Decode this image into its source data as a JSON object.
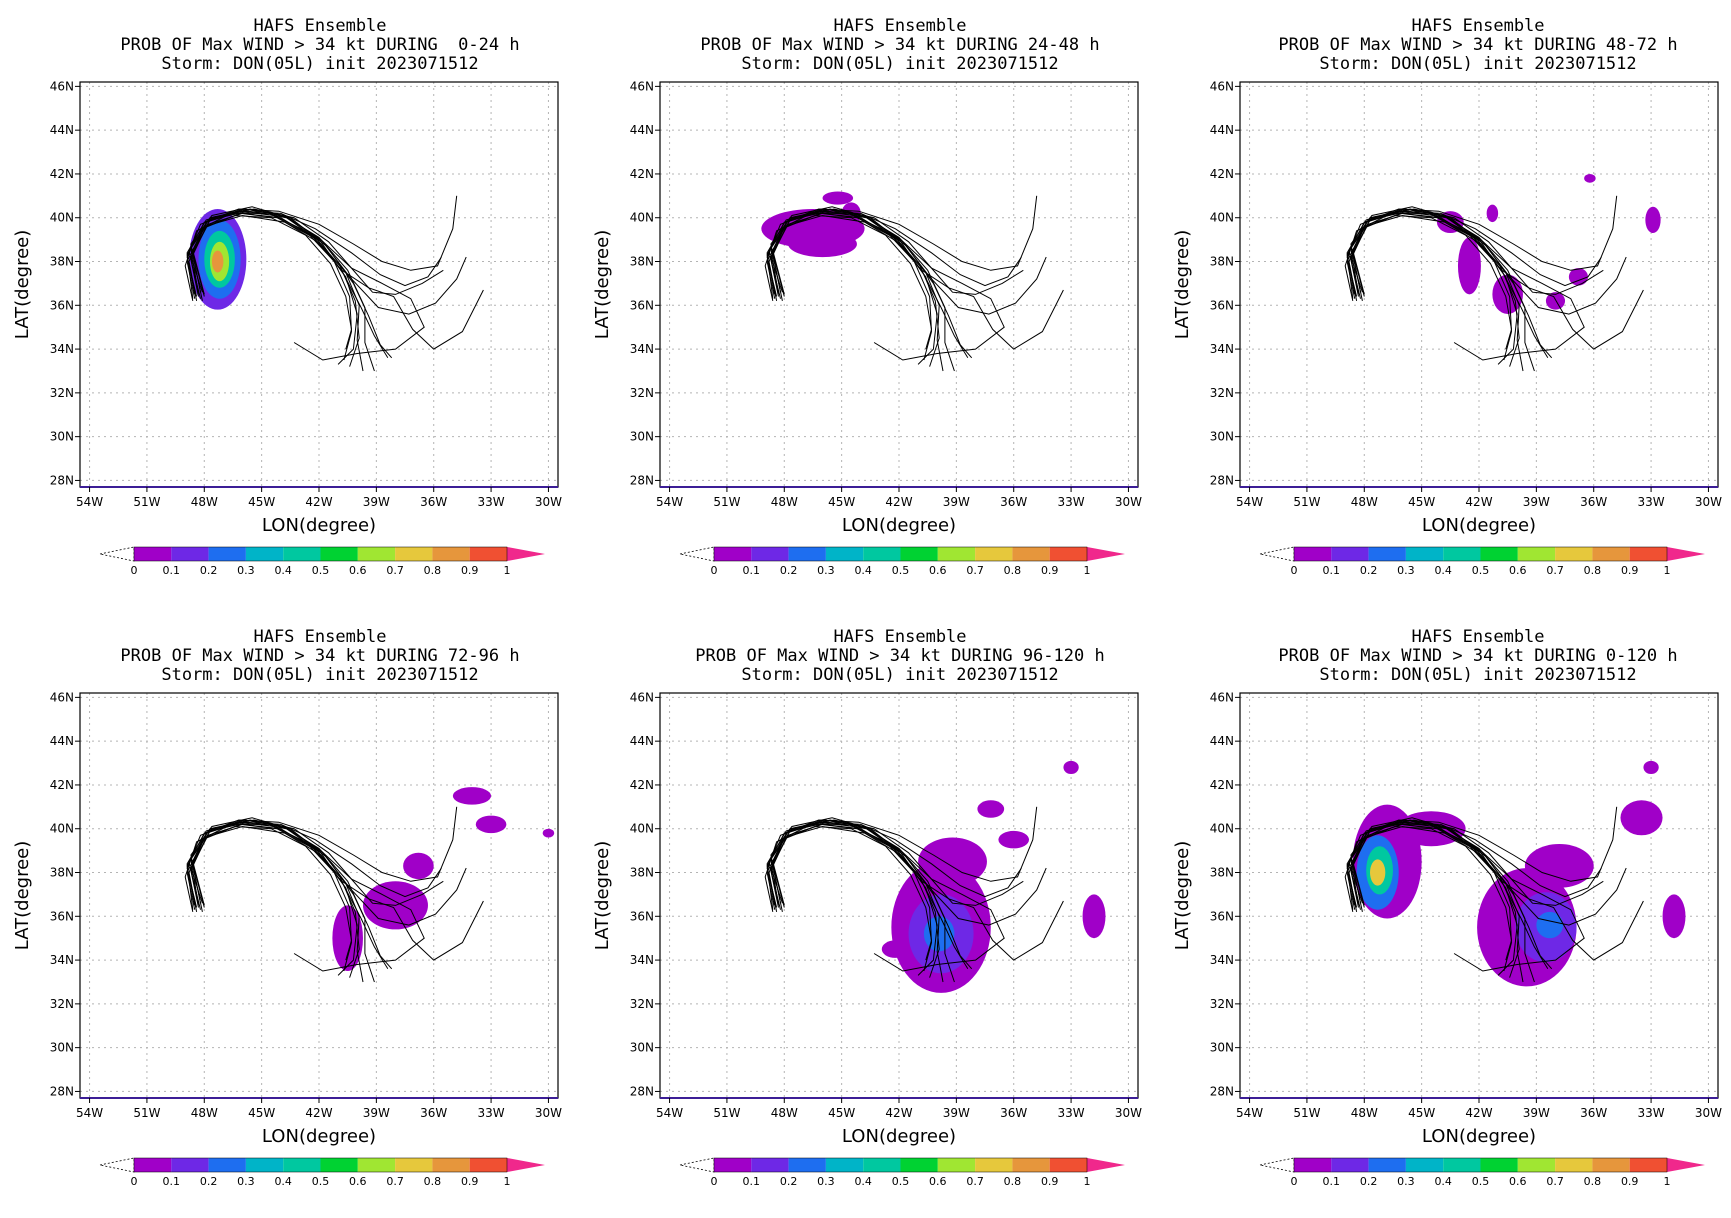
{
  "figure": {
    "xlabel": "LON(degree)",
    "ylabel": "LAT(degree)",
    "lat_ticks": [
      "46N",
      "44N",
      "42N",
      "40N",
      "38N",
      "36N",
      "34N",
      "32N",
      "30N",
      "28N"
    ],
    "lon_ticks": [
      "54W",
      "51W",
      "48W",
      "45W",
      "42W",
      "39W",
      "36W",
      "33W",
      "30W"
    ],
    "colorbar_labels": [
      "0",
      "0.1",
      "0.2",
      "0.3",
      "0.4",
      "0.5",
      "0.6",
      "0.7",
      "0.8",
      "0.9",
      "1"
    ],
    "colorbar_colors": [
      "#a000c8",
      "#6e28e6",
      "#1e6ef0",
      "#00b4c8",
      "#00c8a0",
      "#00d232",
      "#a0e632",
      "#e6c83c",
      "#e6963c",
      "#f05032"
    ],
    "colorbar_over_color": "#f0288c",
    "track_color": "#000000",
    "grid": true
  },
  "panels": [
    {
      "id": "p0-24",
      "title": [
        "HAFS Ensemble",
        "PROB OF Max WIND > 34 kt DURING  0-24 h",
        "Storm: DON(05L) init 2023071512"
      ],
      "prob_blobs": [
        {
          "lon": -47.3,
          "lat": 38.1,
          "rlon": 1.5,
          "rlat": 2.3,
          "p": 0.12
        },
        {
          "lon": -47.2,
          "lat": 38.1,
          "rlon": 1.1,
          "rlat": 1.8,
          "p": 0.25
        },
        {
          "lon": -47.2,
          "lat": 38.1,
          "rlon": 0.8,
          "rlat": 1.3,
          "p": 0.45
        },
        {
          "lon": -47.2,
          "lat": 38.0,
          "rlon": 0.5,
          "rlat": 0.9,
          "p": 0.65
        },
        {
          "lon": -47.3,
          "lat": 38.0,
          "rlon": 0.3,
          "rlat": 0.5,
          "p": 0.85
        }
      ]
    },
    {
      "id": "p24-48",
      "title": [
        "HAFS Ensemble",
        "PROB OF Max WIND > 34 kt DURING 24-48 h",
        "Storm: DON(05L) init 2023071512"
      ],
      "prob_blobs": [
        {
          "lon": -46.5,
          "lat": 39.5,
          "rlon": 2.7,
          "rlat": 0.9,
          "p": 0.05
        },
        {
          "lon": -46.0,
          "lat": 38.8,
          "rlon": 1.8,
          "rlat": 0.6,
          "p": 0.05
        },
        {
          "lon": -45.2,
          "lat": 40.9,
          "rlon": 0.8,
          "rlat": 0.3,
          "p": 0.05
        },
        {
          "lon": -44.5,
          "lat": 40.2,
          "rlon": 0.5,
          "rlat": 0.5,
          "p": 0.05
        }
      ]
    },
    {
      "id": "p48-72",
      "title": [
        "HAFS Ensemble",
        "PROB OF Max WIND > 34 kt DURING 48-72 h",
        "Storm: DON(05L) init 2023071512"
      ],
      "prob_blobs": [
        {
          "lon": -42.5,
          "lat": 37.8,
          "rlon": 0.6,
          "rlat": 1.3,
          "p": 0.05
        },
        {
          "lon": -43.5,
          "lat": 39.8,
          "rlon": 0.7,
          "rlat": 0.5,
          "p": 0.05
        },
        {
          "lon": -40.5,
          "lat": 36.5,
          "rlon": 0.8,
          "rlat": 0.9,
          "p": 0.05
        },
        {
          "lon": -38.0,
          "lat": 36.2,
          "rlon": 0.5,
          "rlat": 0.4,
          "p": 0.05
        },
        {
          "lon": -36.8,
          "lat": 37.3,
          "rlon": 0.5,
          "rlat": 0.4,
          "p": 0.05
        },
        {
          "lon": -32.9,
          "lat": 39.9,
          "rlon": 0.4,
          "rlat": 0.6,
          "p": 0.05
        },
        {
          "lon": -41.3,
          "lat": 40.2,
          "rlon": 0.3,
          "rlat": 0.4,
          "p": 0.05
        },
        {
          "lon": -36.2,
          "lat": 41.8,
          "rlon": 0.3,
          "rlat": 0.2,
          "p": 0.05
        }
      ]
    },
    {
      "id": "p72-96",
      "title": [
        "HAFS Ensemble",
        "PROB OF Max WIND > 34 kt DURING 72-96 h",
        "Storm: DON(05L) init 2023071512"
      ],
      "prob_blobs": [
        {
          "lon": -40.5,
          "lat": 35.0,
          "rlon": 0.8,
          "rlat": 1.5,
          "p": 0.05
        },
        {
          "lon": -38.0,
          "lat": 36.5,
          "rlon": 1.7,
          "rlat": 1.1,
          "p": 0.05
        },
        {
          "lon": -36.8,
          "lat": 38.3,
          "rlon": 0.8,
          "rlat": 0.6,
          "p": 0.05
        },
        {
          "lon": -34.0,
          "lat": 41.5,
          "rlon": 1.0,
          "rlat": 0.4,
          "p": 0.05
        },
        {
          "lon": -33.0,
          "lat": 40.2,
          "rlon": 0.8,
          "rlat": 0.4,
          "p": 0.05
        },
        {
          "lon": -30.0,
          "lat": 39.8,
          "rlon": 0.3,
          "rlat": 0.2,
          "p": 0.05
        }
      ]
    },
    {
      "id": "p96-120",
      "title": [
        "HAFS Ensemble",
        "PROB OF Max WIND > 34 kt DURING 96-120 h",
        "Storm: DON(05L) init 2023071512"
      ],
      "prob_blobs": [
        {
          "lon": -39.8,
          "lat": 35.5,
          "rlon": 2.6,
          "rlat": 3.0,
          "p": 0.05
        },
        {
          "lon": -39.8,
          "lat": 35.2,
          "rlon": 1.7,
          "rlat": 1.8,
          "p": 0.15
        },
        {
          "lon": -39.9,
          "lat": 35.2,
          "rlon": 0.8,
          "rlat": 0.8,
          "p": 0.25
        },
        {
          "lon": -39.2,
          "lat": 38.5,
          "rlon": 1.8,
          "rlat": 1.1,
          "p": 0.05
        },
        {
          "lon": -36.0,
          "lat": 39.5,
          "rlon": 0.8,
          "rlat": 0.4,
          "p": 0.05
        },
        {
          "lon": -37.2,
          "lat": 40.9,
          "rlon": 0.7,
          "rlat": 0.4,
          "p": 0.05
        },
        {
          "lon": -31.8,
          "lat": 36.0,
          "rlon": 0.6,
          "rlat": 1.0,
          "p": 0.05
        },
        {
          "lon": -42.2,
          "lat": 34.5,
          "rlon": 0.7,
          "rlat": 0.4,
          "p": 0.05
        },
        {
          "lon": -33.0,
          "lat": 42.8,
          "rlon": 0.4,
          "rlat": 0.3,
          "p": 0.05
        }
      ]
    },
    {
      "id": "p0-120",
      "title": [
        "HAFS Ensemble",
        "PROB OF Max WIND > 34 kt DURING 0-120 h",
        "Storm: DON(05L) init 2023071512"
      ],
      "prob_blobs": [
        {
          "lon": -46.8,
          "lat": 38.5,
          "rlon": 1.8,
          "rlat": 2.6,
          "p": 0.05
        },
        {
          "lon": -47.3,
          "lat": 38.0,
          "rlon": 1.1,
          "rlat": 1.7,
          "p": 0.25
        },
        {
          "lon": -47.2,
          "lat": 38.1,
          "rlon": 0.7,
          "rlat": 1.1,
          "p": 0.45
        },
        {
          "lon": -47.3,
          "lat": 38.0,
          "rlon": 0.4,
          "rlat": 0.6,
          "p": 0.75
        },
        {
          "lon": -44.5,
          "lat": 40.0,
          "rlon": 1.8,
          "rlat": 0.8,
          "p": 0.05
        },
        {
          "lon": -39.5,
          "lat": 35.5,
          "rlon": 2.6,
          "rlat": 2.7,
          "p": 0.05
        },
        {
          "lon": -38.5,
          "lat": 35.5,
          "rlon": 1.6,
          "rlat": 1.6,
          "p": 0.15
        },
        {
          "lon": -38.3,
          "lat": 35.6,
          "rlon": 0.7,
          "rlat": 0.6,
          "p": 0.25
        },
        {
          "lon": -37.8,
          "lat": 38.3,
          "rlon": 1.8,
          "rlat": 1.0,
          "p": 0.05
        },
        {
          "lon": -31.8,
          "lat": 36.0,
          "rlon": 0.6,
          "rlat": 1.0,
          "p": 0.05
        },
        {
          "lon": -33.5,
          "lat": 40.5,
          "rlon": 1.1,
          "rlat": 0.8,
          "p": 0.05
        },
        {
          "lon": -33.0,
          "lat": 42.8,
          "rlon": 0.4,
          "rlat": 0.3,
          "p": 0.05
        }
      ]
    }
  ],
  "tracks": [
    [
      [
        -48.4,
        36.4
      ],
      [
        -48.9,
        38.2
      ],
      [
        -48.2,
        39.7
      ],
      [
        -46.3,
        40.3
      ],
      [
        -44.3,
        40.1
      ],
      [
        -42.4,
        39.2
      ],
      [
        -40.9,
        37.8
      ],
      [
        -40.1,
        36.2
      ],
      [
        -39.9,
        34.5
      ],
      [
        -40.4,
        33.2
      ]
    ],
    [
      [
        -48.0,
        36.5
      ],
      [
        -48.6,
        38.5
      ],
      [
        -47.8,
        39.9
      ],
      [
        -45.9,
        40.4
      ],
      [
        -43.9,
        40.1
      ],
      [
        -42.0,
        39.1
      ],
      [
        -40.5,
        37.6
      ],
      [
        -39.6,
        35.9
      ],
      [
        -39.6,
        34.3
      ],
      [
        -39.1,
        33.0
      ]
    ],
    [
      [
        -48.6,
        36.2
      ],
      [
        -49.0,
        37.8
      ],
      [
        -48.4,
        39.4
      ],
      [
        -46.6,
        40.2
      ],
      [
        -44.6,
        40.2
      ],
      [
        -42.7,
        39.4
      ],
      [
        -41.2,
        38.0
      ],
      [
        -40.4,
        36.4
      ],
      [
        -40.3,
        34.8
      ],
      [
        -40.7,
        33.5
      ]
    ],
    [
      [
        -48.2,
        36.6
      ],
      [
        -48.7,
        38.8
      ],
      [
        -47.6,
        40.1
      ],
      [
        -45.5,
        40.5
      ],
      [
        -43.5,
        40.0
      ],
      [
        -41.6,
        38.7
      ],
      [
        -40.2,
        37.0
      ],
      [
        -39.4,
        35.5
      ],
      [
        -38.8,
        34.2
      ],
      [
        -38.2,
        33.6
      ]
    ],
    [
      [
        -48.5,
        36.3
      ],
      [
        -48.9,
        38.0
      ],
      [
        -48.0,
        39.6
      ],
      [
        -46.0,
        40.1
      ],
      [
        -43.8,
        39.8
      ],
      [
        -41.9,
        38.8
      ],
      [
        -40.6,
        37.3
      ],
      [
        -40.0,
        35.6
      ],
      [
        -40.2,
        34.0
      ],
      [
        -41.0,
        33.3
      ]
    ],
    [
      [
        -48.1,
        36.2
      ],
      [
        -48.6,
        38.3
      ],
      [
        -47.9,
        39.8
      ],
      [
        -46.0,
        40.3
      ],
      [
        -44.0,
        40.2
      ],
      [
        -42.2,
        39.5
      ],
      [
        -40.3,
        38.4
      ],
      [
        -38.8,
        37.4
      ],
      [
        -37.5,
        36.9
      ],
      [
        -36.3,
        37.3
      ],
      [
        -35.6,
        38.2
      ]
    ],
    [
      [
        -48.3,
        36.4
      ],
      [
        -48.8,
        38.5
      ],
      [
        -47.7,
        40.0
      ],
      [
        -45.6,
        40.4
      ],
      [
        -43.6,
        40.0
      ],
      [
        -41.8,
        38.9
      ],
      [
        -40.4,
        37.3
      ],
      [
        -38.9,
        35.9
      ],
      [
        -37.3,
        35.6
      ],
      [
        -35.9,
        36.1
      ],
      [
        -34.8,
        37.2
      ],
      [
        -34.3,
        38.2
      ]
    ],
    [
      [
        -48.5,
        36.5
      ],
      [
        -48.9,
        38.3
      ],
      [
        -48.0,
        39.8
      ],
      [
        -46.2,
        40.4
      ],
      [
        -44.1,
        40.3
      ],
      [
        -42.0,
        39.7
      ],
      [
        -40.2,
        38.8
      ],
      [
        -38.7,
        38.0
      ],
      [
        -37.2,
        37.6
      ],
      [
        -35.8,
        37.8
      ],
      [
        -35.0,
        39.5
      ],
      [
        -34.8,
        41.0
      ]
    ],
    [
      [
        -48.2,
        36.3
      ],
      [
        -48.7,
        38.1
      ],
      [
        -47.9,
        39.6
      ],
      [
        -46.1,
        40.2
      ],
      [
        -44.2,
        40.0
      ],
      [
        -42.3,
        39.1
      ],
      [
        -40.8,
        37.6
      ],
      [
        -39.4,
        36.8
      ],
      [
        -38.1,
        36.4
      ],
      [
        -37.1,
        34.9
      ],
      [
        -36.0,
        34.0
      ],
      [
        -34.5,
        34.8
      ],
      [
        -33.4,
        36.7
      ]
    ],
    [
      [
        -48.0,
        36.4
      ],
      [
        -48.6,
        38.4
      ],
      [
        -47.7,
        39.9
      ],
      [
        -45.7,
        40.3
      ],
      [
        -43.7,
        40.0
      ],
      [
        -41.9,
        38.9
      ],
      [
        -40.7,
        37.4
      ],
      [
        -39.8,
        35.9
      ],
      [
        -39.1,
        34.6
      ],
      [
        -38.4,
        33.6
      ]
    ],
    [
      [
        -48.4,
        36.2
      ],
      [
        -48.8,
        38.0
      ],
      [
        -48.1,
        39.5
      ],
      [
        -46.4,
        40.1
      ],
      [
        -44.5,
        40.0
      ],
      [
        -42.7,
        39.2
      ],
      [
        -41.4,
        37.9
      ],
      [
        -40.6,
        36.4
      ],
      [
        -40.3,
        34.9
      ],
      [
        -40.6,
        34.0
      ]
    ],
    [
      [
        -48.3,
        36.5
      ],
      [
        -48.7,
        38.6
      ],
      [
        -47.6,
        40.0
      ],
      [
        -45.4,
        40.4
      ],
      [
        -43.3,
        40.0
      ],
      [
        -41.5,
        38.9
      ],
      [
        -40.1,
        37.5
      ],
      [
        -39.2,
        36.6
      ],
      [
        -38.0,
        36.5
      ],
      [
        -36.6,
        37.0
      ],
      [
        -35.5,
        37.6
      ]
    ],
    [
      [
        -48.6,
        36.3
      ],
      [
        -48.9,
        38.4
      ],
      [
        -47.9,
        39.9
      ],
      [
        -45.9,
        40.4
      ],
      [
        -43.8,
        40.1
      ],
      [
        -41.9,
        39.0
      ],
      [
        -40.3,
        37.7
      ],
      [
        -38.7,
        37.0
      ],
      [
        -37.2,
        36.3
      ],
      [
        -36.5,
        35.0
      ],
      [
        -38.0,
        34.0
      ],
      [
        -40.0,
        33.8
      ],
      [
        -41.8,
        33.5
      ],
      [
        -43.3,
        34.3
      ]
    ],
    [
      [
        -48.1,
        36.6
      ],
      [
        -48.7,
        38.2
      ],
      [
        -47.8,
        39.7
      ],
      [
        -46.0,
        40.2
      ],
      [
        -44.0,
        40.0
      ],
      [
        -42.1,
        39.0
      ],
      [
        -40.6,
        37.5
      ],
      [
        -39.9,
        36.0
      ],
      [
        -40.0,
        34.4
      ],
      [
        -39.7,
        33.0
      ]
    ]
  ]
}
